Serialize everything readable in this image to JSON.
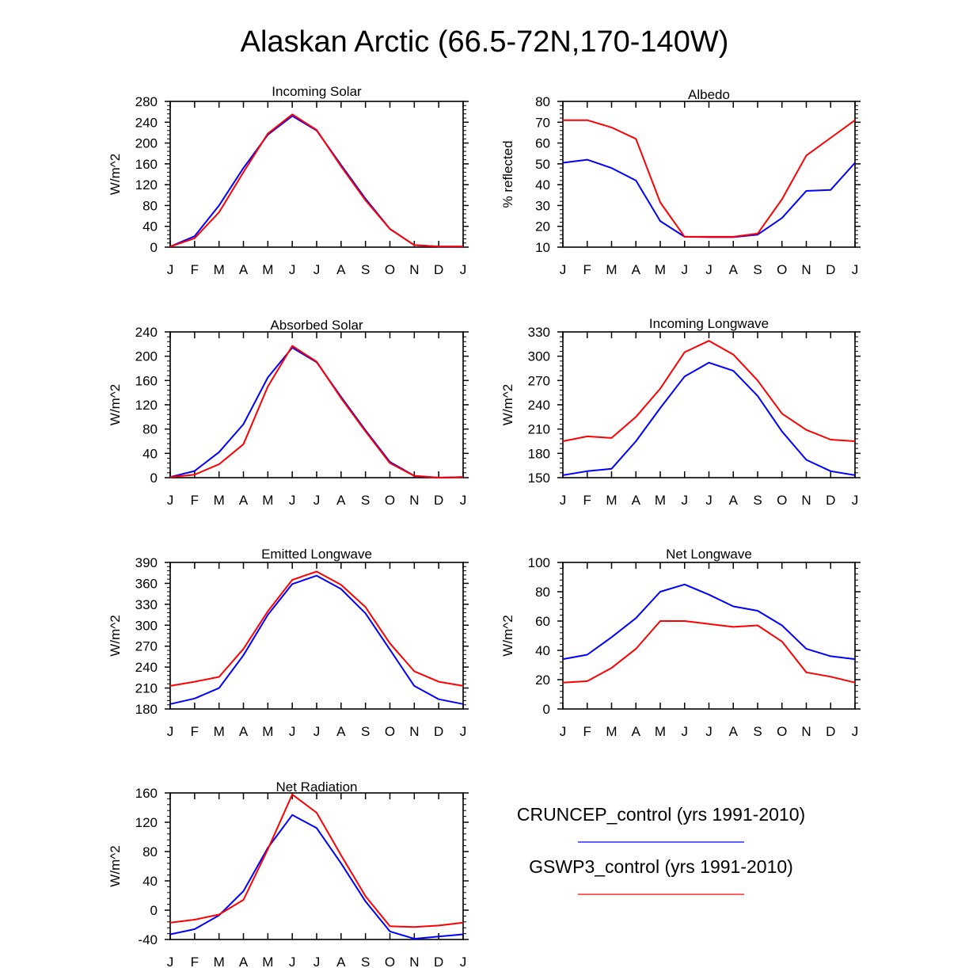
{
  "title": "Alaskan Arctic (66.5-72N,170-140W)",
  "months": [
    "J",
    "F",
    "M",
    "A",
    "M",
    "J",
    "J",
    "A",
    "S",
    "O",
    "N",
    "D",
    "J"
  ],
  "legend": [
    {
      "label": "CRUNCEP_control (yrs 1991-2010)",
      "color": "#0000ff"
    },
    {
      "label": "GSWP3_control (yrs 1991-2010)",
      "color": "#ff0000"
    }
  ],
  "chart_data": [
    {
      "type": "line",
      "title": "Incoming Solar",
      "ylabel": "W/m^2",
      "ylim": [
        0,
        280
      ],
      "yticks": [
        0,
        40,
        80,
        120,
        160,
        200,
        240,
        280
      ],
      "categories": [
        "J",
        "F",
        "M",
        "A",
        "M",
        "J",
        "J",
        "A",
        "S",
        "O",
        "N",
        "D",
        "J"
      ],
      "series": [
        {
          "name": "CRUNCEP_control (yrs 1991-2010)",
          "color": "#0000ff",
          "values": [
            1,
            21,
            80,
            152,
            216,
            252,
            224,
            158,
            93,
            35,
            4,
            1,
            1
          ]
        },
        {
          "name": "GSWP3_control (yrs 1991-2010)",
          "color": "#ff0000",
          "values": [
            1,
            17,
            67,
            144,
            218,
            255,
            225,
            155,
            90,
            35,
            4,
            1,
            1
          ]
        }
      ]
    },
    {
      "type": "line",
      "title": "Albedo",
      "ylabel": "% reflected",
      "ylim": [
        10,
        80
      ],
      "yticks": [
        10,
        20,
        30,
        40,
        50,
        60,
        70,
        80
      ],
      "categories": [
        "J",
        "F",
        "M",
        "A",
        "M",
        "J",
        "J",
        "A",
        "S",
        "O",
        "N",
        "D",
        "J"
      ],
      "series": [
        {
          "name": "CRUNCEP_control (yrs 1991-2010)",
          "color": "#0000ff",
          "values": [
            50.5,
            52,
            48,
            42,
            22.5,
            15,
            14.8,
            14.8,
            16,
            24,
            37,
            37.5,
            50.5
          ]
        },
        {
          "name": "GSWP3_control (yrs 1991-2010)",
          "color": "#ff0000",
          "values": [
            71,
            71,
            67.5,
            62,
            31.5,
            15,
            15,
            15,
            16.5,
            33,
            54,
            62.5,
            71
          ]
        }
      ]
    },
    {
      "type": "line",
      "title": "Absorbed Solar",
      "ylabel": "W/m^2",
      "ylim": [
        0,
        240
      ],
      "yticks": [
        0,
        40,
        80,
        120,
        160,
        200,
        240
      ],
      "categories": [
        "J",
        "F",
        "M",
        "A",
        "M",
        "J",
        "J",
        "A",
        "S",
        "O",
        "N",
        "D",
        "J"
      ],
      "series": [
        {
          "name": "CRUNCEP_control (yrs 1991-2010)",
          "color": "#0000ff",
          "values": [
            1,
            11,
            42,
            88,
            165,
            214,
            190,
            133,
            78,
            26,
            3,
            0,
            1
          ]
        },
        {
          "name": "GSWP3_control (yrs 1991-2010)",
          "color": "#ff0000",
          "values": [
            1,
            5,
            22,
            55,
            150,
            217,
            191,
            131,
            76,
            24,
            3,
            0,
            1
          ]
        }
      ]
    },
    {
      "type": "line",
      "title": "Incoming Longwave",
      "ylabel": "W/m^2",
      "ylim": [
        150,
        330
      ],
      "yticks": [
        150,
        180,
        210,
        240,
        270,
        300,
        330
      ],
      "categories": [
        "J",
        "F",
        "M",
        "A",
        "M",
        "J",
        "J",
        "A",
        "S",
        "O",
        "N",
        "D",
        "J"
      ],
      "series": [
        {
          "name": "CRUNCEP_control (yrs 1991-2010)",
          "color": "#0000ff",
          "values": [
            153,
            158,
            161,
            195,
            236,
            275,
            292,
            282,
            251,
            207,
            172,
            158,
            153
          ]
        },
        {
          "name": "GSWP3_control (yrs 1991-2010)",
          "color": "#ff0000",
          "values": [
            195,
            201,
            199,
            225,
            260,
            305,
            319,
            302,
            270,
            229,
            209,
            197,
            195
          ]
        }
      ]
    },
    {
      "type": "line",
      "title": "Emitted Longwave",
      "ylabel": "W/m^2",
      "ylim": [
        180,
        390
      ],
      "yticks": [
        180,
        210,
        240,
        270,
        300,
        330,
        360,
        390
      ],
      "categories": [
        "J",
        "F",
        "M",
        "A",
        "M",
        "J",
        "J",
        "A",
        "S",
        "O",
        "N",
        "D",
        "J"
      ],
      "series": [
        {
          "name": "CRUNCEP_control (yrs 1991-2010)",
          "color": "#0000ff",
          "values": [
            187,
            195,
            210,
            257,
            315,
            359,
            371,
            352,
            317,
            265,
            213,
            194,
            187
          ]
        },
        {
          "name": "GSWP3_control (yrs 1991-2010)",
          "color": "#ff0000",
          "values": [
            213,
            219,
            226,
            266,
            320,
            365,
            377,
            358,
            326,
            274,
            234,
            219,
            213
          ]
        }
      ]
    },
    {
      "type": "line",
      "title": "Net Longwave",
      "ylabel": "W/m^2",
      "ylim": [
        0,
        100
      ],
      "yticks": [
        0,
        20,
        40,
        60,
        80,
        100
      ],
      "categories": [
        "J",
        "F",
        "M",
        "A",
        "M",
        "J",
        "J",
        "A",
        "S",
        "O",
        "N",
        "D",
        "J"
      ],
      "series": [
        {
          "name": "CRUNCEP_control (yrs 1991-2010)",
          "color": "#0000ff",
          "values": [
            34,
            37,
            49,
            62,
            80,
            85,
            78,
            70,
            67,
            57,
            41,
            36,
            34
          ]
        },
        {
          "name": "GSWP3_control (yrs 1991-2010)",
          "color": "#ff0000",
          "values": [
            18,
            19,
            28,
            41,
            60,
            60,
            58,
            56,
            57,
            46,
            25,
            22,
            18
          ]
        }
      ]
    },
    {
      "type": "line",
      "title": "Net Radiation",
      "ylabel": "W/m^2",
      "ylim": [
        -40,
        160
      ],
      "yticks": [
        -40,
        0,
        40,
        80,
        120,
        160
      ],
      "categories": [
        "J",
        "F",
        "M",
        "A",
        "M",
        "J",
        "J",
        "A",
        "S",
        "O",
        "N",
        "D",
        "J"
      ],
      "series": [
        {
          "name": "CRUNCEP_control (yrs 1991-2010)",
          "color": "#0000ff",
          "values": [
            -33,
            -26,
            -7,
            26,
            85,
            130,
            112,
            64,
            12,
            -29,
            -39,
            -36,
            -33
          ]
        },
        {
          "name": "GSWP3_control (yrs 1991-2010)",
          "color": "#ff0000",
          "values": [
            -17,
            -13,
            -6,
            14,
            83,
            158,
            133,
            75,
            19,
            -22,
            -23,
            -21,
            -17
          ]
        }
      ]
    }
  ]
}
